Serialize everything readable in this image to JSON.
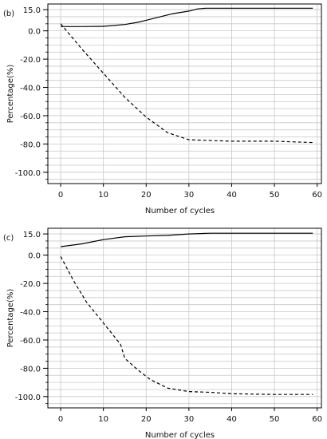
{
  "chart_data": [
    {
      "type": "line",
      "panel_label": "(b)",
      "title": "",
      "xlabel": "Number of cycles",
      "ylabel": "Percentage(%)",
      "xlim": [
        -3,
        61
      ],
      "ylim": [
        -108,
        19
      ],
      "xticks": [
        0,
        10,
        20,
        30,
        40,
        50,
        60
      ],
      "xtick_labels": [
        "0",
        "10",
        "20",
        "30",
        "40",
        "50",
        "60"
      ],
      "yticks": [
        15,
        0,
        -20,
        -40,
        -60,
        -80,
        -100
      ],
      "ytick_labels": [
        "15.0",
        "0.0",
        "-20.0",
        "-40.0",
        "-60.0",
        "-80.0",
        "-100.0"
      ],
      "grid": true,
      "legend": "none",
      "series": [
        {
          "style": "solid",
          "color": "#000000",
          "x": [
            0,
            5,
            10,
            15,
            18,
            20,
            22,
            24,
            26,
            28,
            30,
            32,
            34,
            40,
            50,
            59
          ],
          "y": [
            3,
            3,
            3.2,
            4.5,
            6,
            7.5,
            9,
            10.5,
            12,
            13,
            14,
            15.5,
            16,
            16,
            16,
            16
          ]
        },
        {
          "style": "dashed",
          "color": "#000000",
          "x": [
            0,
            5,
            10,
            15,
            20,
            25,
            30,
            35,
            40,
            50,
            59
          ],
          "y": [
            5,
            -13,
            -30,
            -47,
            -61,
            -72,
            -77,
            -77.5,
            -78,
            -78,
            -79
          ]
        }
      ]
    },
    {
      "type": "line",
      "panel_label": "(c)",
      "title": "",
      "xlabel": "Number of cycles",
      "ylabel": "Percentage(%)",
      "xlim": [
        -3,
        61
      ],
      "ylim": [
        -108,
        19
      ],
      "xticks": [
        0,
        10,
        20,
        30,
        40,
        50,
        60
      ],
      "xtick_labels": [
        "0",
        "10",
        "20",
        "30",
        "40",
        "50",
        "60"
      ],
      "yticks": [
        15,
        0,
        -20,
        -40,
        -60,
        -80,
        -100
      ],
      "ytick_labels": [
        "15.0",
        "0.0",
        "-20.0",
        "-40.0",
        "-60.0",
        "-80.0",
        "-100.0"
      ],
      "grid": true,
      "legend": "none",
      "series": [
        {
          "style": "solid",
          "color": "#000000",
          "x": [
            0,
            5,
            10,
            15,
            20,
            25,
            30,
            35,
            40,
            50,
            59
          ],
          "y": [
            6,
            8,
            11,
            13,
            13.5,
            14,
            15,
            15.5,
            15.5,
            15.5,
            15.5
          ]
        },
        {
          "style": "dashed",
          "color": "#000000",
          "x": [
            0,
            3,
            6,
            10,
            14,
            15,
            18,
            21,
            25,
            30,
            35,
            40,
            50,
            59
          ],
          "y": [
            -1,
            -18,
            -33,
            -48,
            -63,
            -73,
            -81,
            -88,
            -94,
            -96.5,
            -97,
            -98,
            -98.5,
            -98.5
          ]
        }
      ]
    }
  ]
}
